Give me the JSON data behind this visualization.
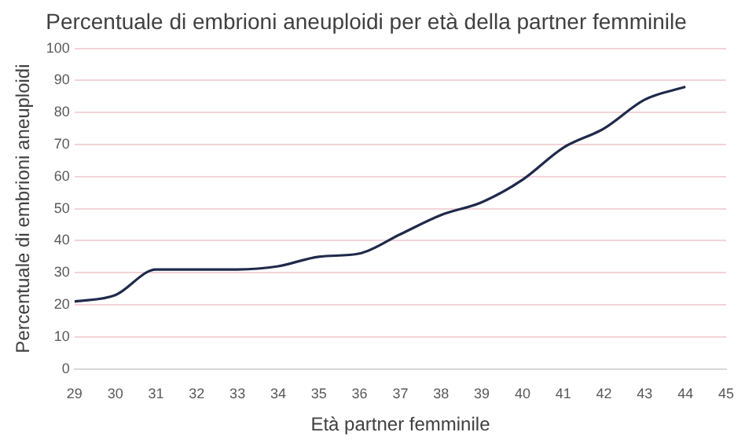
{
  "chart_data": {
    "type": "line",
    "title": "Percentuale di embrioni aneuploidi per età della partner femminile",
    "xlabel": "Età partner femminile",
    "ylabel": "Percentuale di embrioni aneuploidi",
    "x": [
      29,
      30,
      31,
      32,
      33,
      34,
      35,
      36,
      37,
      38,
      39,
      40,
      41,
      42,
      43,
      44
    ],
    "series": [
      {
        "color": "#1f2a4a",
        "values": [
          21,
          23,
          31,
          31,
          31,
          32,
          35,
          36,
          42,
          48,
          52,
          59,
          69,
          75,
          84,
          88
        ]
      }
    ],
    "xlim": [
      29,
      45
    ],
    "xticks": [
      29,
      30,
      31,
      32,
      33,
      34,
      35,
      36,
      37,
      38,
      39,
      40,
      41,
      42,
      43,
      44,
      45
    ],
    "ylim": [
      0,
      100
    ],
    "yticks": [
      0,
      10,
      20,
      30,
      40,
      50,
      60,
      70,
      80,
      90,
      100
    ],
    "grid": "y",
    "legend": false,
    "marker": "none",
    "line_style": "solid"
  }
}
